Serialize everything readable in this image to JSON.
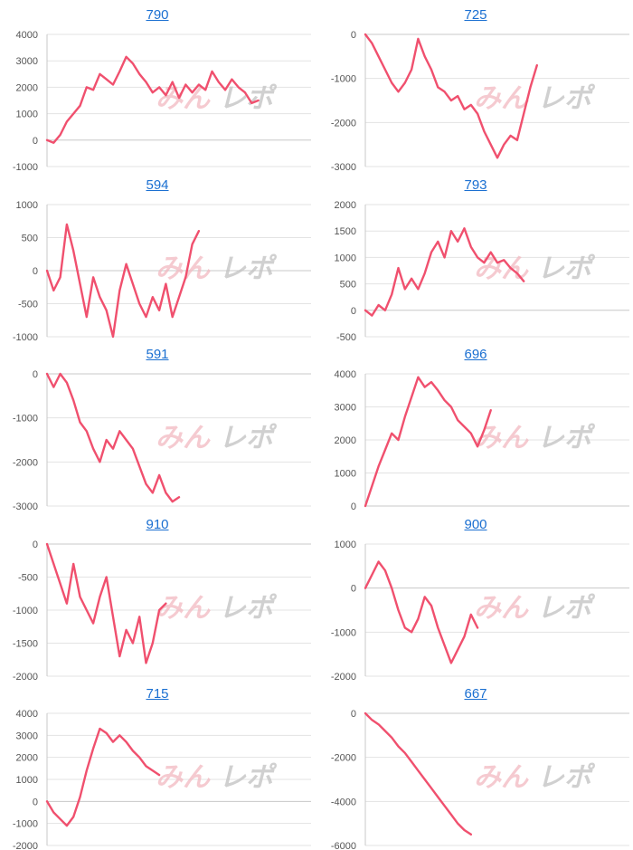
{
  "colors": {
    "line": "#f0506e",
    "grid": "#e3e3e3",
    "axis": "#c8c8c8",
    "tick_text": "#555555",
    "title_link": "#1a6fd1",
    "watermark_pink": "#f2b8c0",
    "watermark_gray": "#c4c4c4"
  },
  "watermark": {
    "text": "みんレポ"
  },
  "chart_data": [
    {
      "type": "line",
      "title": "790",
      "ylim": [
        -1000,
        4000
      ],
      "yticks": [
        -1000,
        0,
        1000,
        2000,
        3000,
        4000
      ],
      "x": [
        0,
        2,
        4,
        6,
        8,
        10,
        12,
        14,
        16,
        18,
        20,
        22,
        24,
        26,
        28,
        30,
        32,
        34,
        36,
        38,
        40,
        42,
        44,
        46,
        48,
        50,
        52,
        54,
        56,
        58,
        60,
        62,
        64,
        66,
        68,
        70,
        72,
        74,
        76,
        78
      ],
      "values": [
        0,
        -100,
        200,
        700,
        1000,
        1300,
        2000,
        1900,
        2500,
        2300,
        2100,
        2600,
        3150,
        2900,
        2500,
        2200,
        1800,
        2000,
        1700,
        2200,
        1600,
        2100,
        1800,
        2100,
        1900,
        2600,
        2200,
        1900,
        2300,
        2000,
        1800,
        1400,
        1500,
        null,
        null,
        null,
        null,
        null,
        null,
        null
      ]
    },
    {
      "type": "line",
      "title": "725",
      "ylim": [
        -3000,
        0
      ],
      "yticks": [
        -3000,
        -2000,
        -1000,
        0
      ],
      "x": [
        0,
        2,
        4,
        6,
        8,
        10,
        12,
        14,
        16,
        18,
        20,
        22,
        24,
        26,
        28,
        30,
        32,
        34,
        36,
        38,
        40,
        42,
        44,
        46,
        48,
        50,
        52,
        54,
        56,
        58,
        60,
        62,
        64,
        66,
        68,
        70,
        72,
        74,
        76,
        78
      ],
      "values": [
        0,
        -200,
        -500,
        -800,
        -1100,
        -1300,
        -1100,
        -800,
        -100,
        -500,
        -800,
        -1200,
        -1300,
        -1500,
        -1400,
        -1700,
        -1600,
        -1800,
        -2200,
        -2500,
        -2800,
        -2500,
        -2300,
        -2400,
        -1800,
        -1200,
        -700,
        null,
        null,
        null,
        null,
        null,
        null,
        null,
        null,
        null,
        null,
        null,
        null,
        null
      ]
    },
    {
      "type": "line",
      "title": "594",
      "ylim": [
        -1000,
        1000
      ],
      "yticks": [
        -1000,
        -500,
        0,
        500,
        1000
      ],
      "x": [
        0,
        2,
        4,
        6,
        8,
        10,
        12,
        14,
        16,
        18,
        20,
        22,
        24,
        26,
        28,
        30,
        32,
        34,
        36,
        38,
        40,
        42,
        44,
        46,
        48,
        50,
        52,
        54,
        56,
        58,
        60,
        62,
        64,
        66,
        68,
        70,
        72,
        74,
        76,
        78
      ],
      "values": [
        0,
        -300,
        -100,
        700,
        300,
        -200,
        -700,
        -100,
        -400,
        -600,
        -1000,
        -300,
        100,
        -200,
        -500,
        -700,
        -400,
        -600,
        -200,
        -700,
        -400,
        -100,
        400,
        600,
        null,
        null,
        null,
        null,
        null,
        null,
        null,
        null,
        null,
        null,
        null,
        null,
        null,
        null,
        null,
        null
      ]
    },
    {
      "type": "line",
      "title": "793",
      "ylim": [
        -500,
        2000
      ],
      "yticks": [
        -500,
        0,
        500,
        1000,
        1500,
        2000
      ],
      "x": [
        0,
        2,
        4,
        6,
        8,
        10,
        12,
        14,
        16,
        18,
        20,
        22,
        24,
        26,
        28,
        30,
        32,
        34,
        36,
        38,
        40,
        42,
        44,
        46,
        48,
        50,
        52,
        54,
        56,
        58,
        60,
        62,
        64,
        66,
        68,
        70,
        72,
        74,
        76,
        78
      ],
      "values": [
        0,
        -100,
        100,
        0,
        300,
        800,
        400,
        600,
        400,
        700,
        1100,
        1300,
        1000,
        1500,
        1300,
        1550,
        1200,
        1000,
        900,
        1100,
        900,
        950,
        800,
        700,
        550,
        null,
        null,
        null,
        null,
        null,
        null,
        null,
        null,
        null,
        null,
        null,
        null,
        null,
        null,
        null
      ]
    },
    {
      "type": "line",
      "title": "591",
      "ylim": [
        -3000,
        0
      ],
      "yticks": [
        -3000,
        -2000,
        -1000,
        0
      ],
      "x": [
        0,
        2,
        4,
        6,
        8,
        10,
        12,
        14,
        16,
        18,
        20,
        22,
        24,
        26,
        28,
        30,
        32,
        34,
        36,
        38,
        40,
        42,
        44,
        46,
        48,
        50,
        52,
        54,
        56,
        58,
        60,
        62,
        64,
        66,
        68,
        70,
        72,
        74,
        76,
        78
      ],
      "values": [
        0,
        -300,
        0,
        -200,
        -600,
        -1100,
        -1300,
        -1700,
        -2000,
        -1500,
        -1700,
        -1300,
        -1500,
        -1700,
        -2100,
        -2500,
        -2700,
        -2300,
        -2700,
        -2900,
        -2800,
        null,
        null,
        null,
        null,
        null,
        null,
        null,
        null,
        null,
        null,
        null,
        null,
        null,
        null,
        null,
        null,
        null,
        null,
        null
      ]
    },
    {
      "type": "line",
      "title": "696",
      "ylim": [
        0,
        4000
      ],
      "yticks": [
        0,
        1000,
        2000,
        3000,
        4000
      ],
      "x": [
        0,
        2,
        4,
        6,
        8,
        10,
        12,
        14,
        16,
        18,
        20,
        22,
        24,
        26,
        28,
        30,
        32,
        34,
        36,
        38,
        40,
        42,
        44,
        46,
        48,
        50,
        52,
        54,
        56,
        58,
        60,
        62,
        64,
        66,
        68,
        70,
        72,
        74,
        76,
        78
      ],
      "values": [
        0,
        600,
        1200,
        1700,
        2200,
        2000,
        2700,
        3300,
        3900,
        3600,
        3750,
        3500,
        3200,
        3000,
        2600,
        2400,
        2200,
        1800,
        2300,
        2900,
        null,
        null,
        null,
        null,
        null,
        null,
        null,
        null,
        null,
        null,
        null,
        null,
        null,
        null,
        null,
        null,
        null,
        null,
        null,
        null
      ]
    },
    {
      "type": "line",
      "title": "910",
      "ylim": [
        -2000,
        0
      ],
      "yticks": [
        -2000,
        -1500,
        -1000,
        -500,
        0
      ],
      "x": [
        0,
        2,
        4,
        6,
        8,
        10,
        12,
        14,
        16,
        18,
        20,
        22,
        24,
        26,
        28,
        30,
        32,
        34,
        36,
        38,
        40,
        42,
        44,
        46,
        48,
        50,
        52,
        54,
        56,
        58,
        60,
        62,
        64,
        66,
        68,
        70,
        72,
        74,
        76,
        78
      ],
      "values": [
        0,
        -300,
        -600,
        -900,
        -300,
        -800,
        -1000,
        -1200,
        -800,
        -500,
        -1100,
        -1700,
        -1300,
        -1500,
        -1100,
        -1800,
        -1500,
        -1000,
        -900,
        null,
        null,
        null,
        null,
        null,
        null,
        null,
        null,
        null,
        null,
        null,
        null,
        null,
        null,
        null,
        null,
        null,
        null,
        null,
        null,
        null
      ]
    },
    {
      "type": "line",
      "title": "900",
      "ylim": [
        -2000,
        1000
      ],
      "yticks": [
        -2000,
        -1000,
        0,
        1000
      ],
      "x": [
        0,
        2,
        4,
        6,
        8,
        10,
        12,
        14,
        16,
        18,
        20,
        22,
        24,
        26,
        28,
        30,
        32,
        34,
        36,
        38,
        40,
        42,
        44,
        46,
        48,
        50,
        52,
        54,
        56,
        58,
        60,
        62,
        64,
        66,
        68,
        70,
        72,
        74,
        76,
        78
      ],
      "values": [
        0,
        300,
        600,
        400,
        0,
        -500,
        -900,
        -1000,
        -700,
        -200,
        -400,
        -900,
        -1300,
        -1700,
        -1400,
        -1100,
        -600,
        -900,
        null,
        null,
        null,
        null,
        null,
        null,
        null,
        null,
        null,
        null,
        null,
        null,
        null,
        null,
        null,
        null,
        null,
        null,
        null,
        null,
        null,
        null
      ]
    },
    {
      "type": "line",
      "title": "715",
      "ylim": [
        -2000,
        4000
      ],
      "yticks": [
        -2000,
        -1000,
        0,
        1000,
        2000,
        3000,
        4000
      ],
      "x": [
        0,
        2,
        4,
        6,
        8,
        10,
        12,
        14,
        16,
        18,
        20,
        22,
        24,
        26,
        28,
        30,
        32,
        34,
        36,
        38,
        40,
        42,
        44,
        46,
        48,
        50,
        52,
        54,
        56,
        58,
        60,
        62,
        64,
        66,
        68,
        70,
        72,
        74,
        76,
        78
      ],
      "values": [
        0,
        -500,
        -800,
        -1100,
        -700,
        200,
        1400,
        2400,
        3300,
        3100,
        2700,
        3000,
        2700,
        2300,
        2000,
        1600,
        1400,
        1200,
        null,
        null,
        null,
        null,
        null,
        null,
        null,
        null,
        null,
        null,
        null,
        null,
        null,
        null,
        null,
        null,
        null,
        null,
        null,
        null,
        null,
        null
      ]
    },
    {
      "type": "line",
      "title": "667",
      "ylim": [
        -6000,
        0
      ],
      "yticks": [
        -6000,
        -4000,
        -2000,
        0
      ],
      "x": [
        0,
        2,
        4,
        6,
        8,
        10,
        12,
        14,
        16,
        18,
        20,
        22,
        24,
        26,
        28,
        30,
        32,
        34,
        36,
        38,
        40,
        42,
        44,
        46,
        48,
        50,
        52,
        54,
        56,
        58,
        60,
        62,
        64,
        66,
        68,
        70,
        72,
        74,
        76,
        78
      ],
      "values": [
        0,
        -300,
        -500,
        -800,
        -1100,
        -1500,
        -1800,
        -2200,
        -2600,
        -3000,
        -3400,
        -3800,
        -4200,
        -4600,
        -5000,
        -5300,
        -5500,
        null,
        null,
        null,
        null,
        null,
        null,
        null,
        null,
        null,
        null,
        null,
        null,
        null,
        null,
        null,
        null,
        null,
        null,
        null,
        null,
        null,
        null,
        null
      ]
    }
  ]
}
